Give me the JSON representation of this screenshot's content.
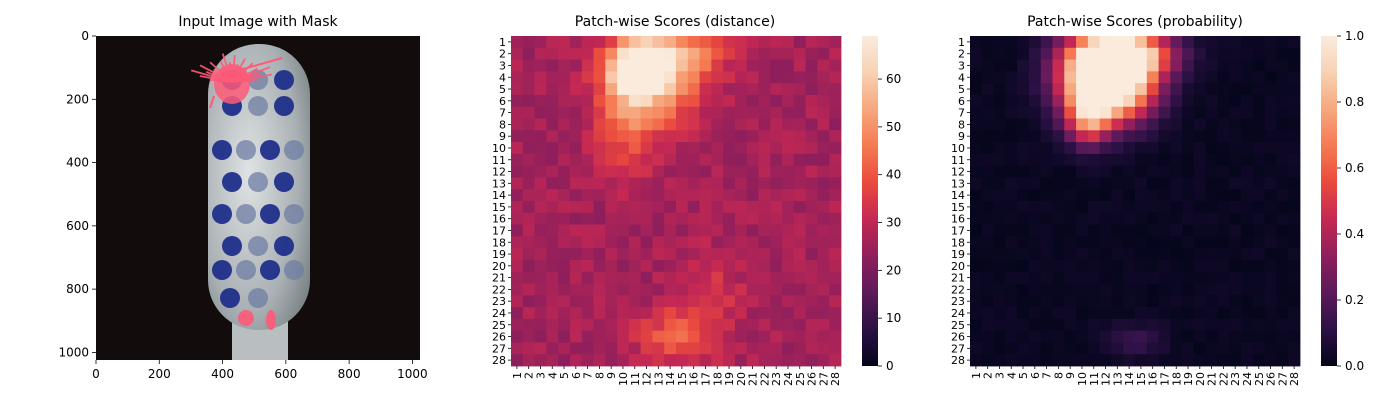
{
  "colors": {
    "colormap": [
      "#03051a",
      "#2b1145",
      "#5c1a5a",
      "#8f1f5c",
      "#c42853",
      "#ea4a3d",
      "#f57a52",
      "#f6a77e",
      "#f8d1b3",
      "#faebdd"
    ],
    "background_image": "#120c0c",
    "brush_handle": "#b9bec0",
    "bristle_blue": "#1f2f8a",
    "mask_pink": "#ff5a78"
  },
  "chart_data": [
    {
      "type": "image",
      "title": "Input Image with Mask",
      "x_ticks": [
        0,
        200,
        400,
        600,
        800,
        1000
      ],
      "y_ticks": [
        0,
        200,
        400,
        600,
        800,
        1000
      ],
      "xlim": [
        0,
        1024
      ],
      "ylim": [
        1024,
        0
      ]
    },
    {
      "type": "heatmap",
      "title": "Patch-wise Scores (distance)",
      "rows": 28,
      "cols": 28,
      "x_labels": [
        "1",
        "2",
        "3",
        "4",
        "5",
        "6",
        "7",
        "8",
        "9",
        "10",
        "11",
        "12",
        "13",
        "14",
        "15",
        "16",
        "17",
        "18",
        "19",
        "20",
        "21",
        "22",
        "23",
        "24",
        "25",
        "26",
        "27",
        "28"
      ],
      "y_labels": [
        "1",
        "2",
        "3",
        "4",
        "5",
        "6",
        "7",
        "8",
        "9",
        "10",
        "11",
        "12",
        "13",
        "14",
        "15",
        "16",
        "17",
        "18",
        "19",
        "20",
        "21",
        "22",
        "23",
        "24",
        "25",
        "26",
        "27",
        "28"
      ],
      "vmin": 0,
      "vmax": 69,
      "colorbar_ticks": [
        0,
        10,
        20,
        30,
        40,
        50,
        60
      ],
      "hotspots": [
        {
          "row": 3.6,
          "col": 11.2,
          "sx": 1.8,
          "sy": 1.7,
          "amp": 42
        },
        {
          "row": 2.0,
          "col": 14.0,
          "sx": 3.0,
          "sy": 1.6,
          "amp": 25
        },
        {
          "row": 5.2,
          "col": 13.2,
          "sx": 2.6,
          "sy": 2.5,
          "amp": 18
        },
        {
          "row": 8.0,
          "col": 10.2,
          "sx": 1.8,
          "sy": 2.8,
          "amp": 15
        },
        {
          "row": 26.0,
          "col": 14.5,
          "sx": 2.3,
          "sy": 1.6,
          "amp": 15
        },
        {
          "row": 22.5,
          "col": 17.5,
          "sx": 2.0,
          "sy": 2.5,
          "amp": 7
        }
      ],
      "baseline": 26
    },
    {
      "type": "heatmap",
      "title": "Patch-wise Scores (probability)",
      "rows": 28,
      "cols": 28,
      "x_labels": [
        "1",
        "2",
        "3",
        "4",
        "5",
        "6",
        "7",
        "8",
        "9",
        "10",
        "11",
        "12",
        "13",
        "14",
        "15",
        "16",
        "17",
        "18",
        "19",
        "20",
        "21",
        "22",
        "23",
        "24",
        "25",
        "26",
        "27",
        "28"
      ],
      "y_labels": [
        "1",
        "2",
        "3",
        "4",
        "5",
        "6",
        "7",
        "8",
        "9",
        "10",
        "11",
        "12",
        "13",
        "14",
        "15",
        "16",
        "17",
        "18",
        "19",
        "20",
        "21",
        "22",
        "23",
        "24",
        "25",
        "26",
        "27",
        "28"
      ],
      "vmin": 0,
      "vmax": 1.0,
      "colorbar_ticks": [
        0.0,
        0.2,
        0.4,
        0.6,
        0.8,
        1.0
      ],
      "hotspots": [
        {
          "row": 4.0,
          "col": 12.2,
          "sx": 2.6,
          "sy": 2.4,
          "amp": 1.6
        },
        {
          "row": 2.0,
          "col": 14.0,
          "sx": 2.8,
          "sy": 1.2,
          "amp": 0.6
        },
        {
          "row": 7.5,
          "col": 10.5,
          "sx": 1.2,
          "sy": 1.6,
          "amp": 0.5
        },
        {
          "row": 26.3,
          "col": 14.5,
          "sx": 1.8,
          "sy": 1.0,
          "amp": 0.12
        }
      ],
      "baseline": 0.02
    }
  ]
}
